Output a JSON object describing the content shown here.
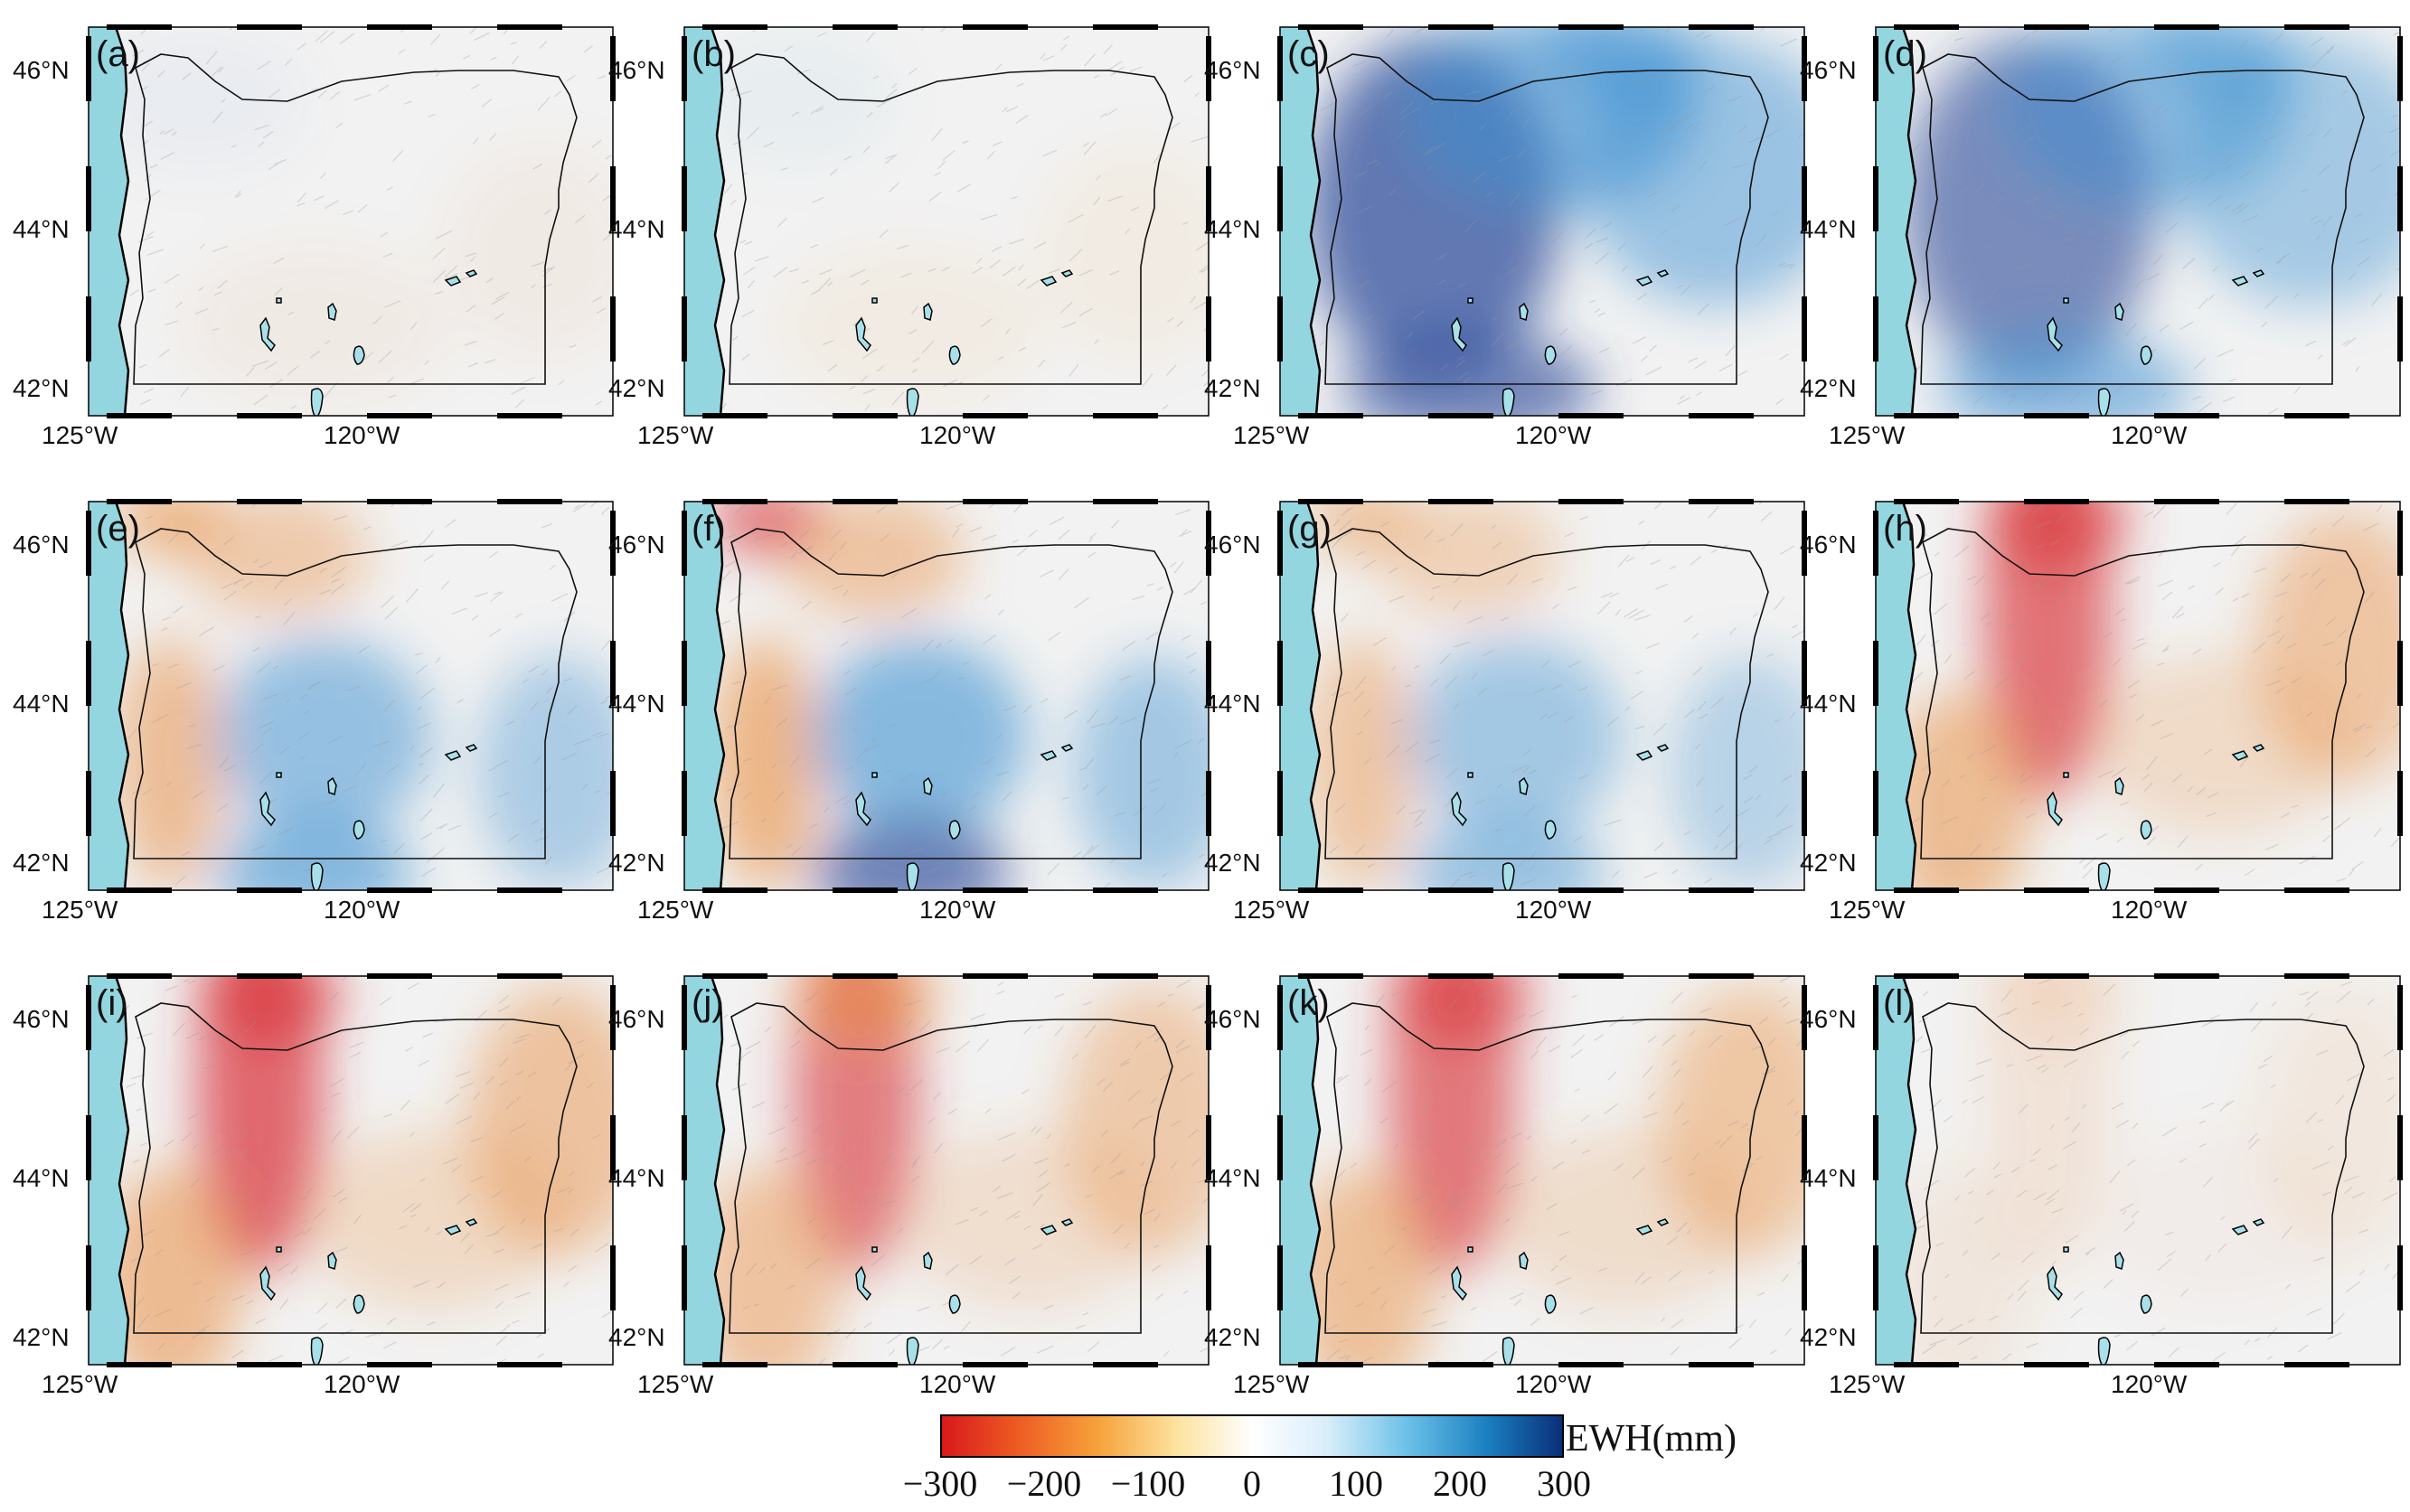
{
  "figure": {
    "latitude_ticks": [
      "46°N",
      "44°N",
      "42°N"
    ],
    "longitude_ticks": [
      "125°W",
      "120°W"
    ],
    "panels": [
      {
        "label": "(a)",
        "pattern": "weak",
        "amplitude": 0.25
      },
      {
        "label": "(b)",
        "pattern": "weak",
        "amplitude": 0.2
      },
      {
        "label": "(c)",
        "pattern": "wet",
        "amplitude": 1.0
      },
      {
        "label": "(d)",
        "pattern": "wet",
        "amplitude": 0.85
      },
      {
        "label": "(e)",
        "pattern": "mixed",
        "amplitude": 0.8
      },
      {
        "label": "(f)",
        "pattern": "mixed",
        "amplitude": 0.9
      },
      {
        "label": "(g)",
        "pattern": "mixed",
        "amplitude": 0.65
      },
      {
        "label": "(h)",
        "pattern": "dry",
        "amplitude": 0.9
      },
      {
        "label": "(i)",
        "pattern": "dry",
        "amplitude": 0.95
      },
      {
        "label": "(j)",
        "pattern": "dry",
        "amplitude": 0.8
      },
      {
        "label": "(k)",
        "pattern": "dry",
        "amplitude": 0.85
      },
      {
        "label": "(l)",
        "pattern": "dry",
        "amplitude": 0.2
      }
    ]
  },
  "colorbar": {
    "title": "EWH(mm)",
    "ticks": [
      "−300",
      "−200",
      "−100",
      "0",
      "100",
      "200",
      "300"
    ],
    "range": [
      -300,
      300
    ],
    "colors": [
      "#d7191c",
      "#f6a13a",
      "#ffffff",
      "#6cc1e8",
      "#0a2f7a"
    ]
  },
  "colors": {
    "ocean": "#93d6e0",
    "land": "#f2f2f2",
    "lake": "#a8e0ea",
    "wet": "#3a8fd0",
    "dry": "#e88a3a",
    "extreme_dry": "#d8343a",
    "extreme_wet": "#2a4a9a"
  }
}
